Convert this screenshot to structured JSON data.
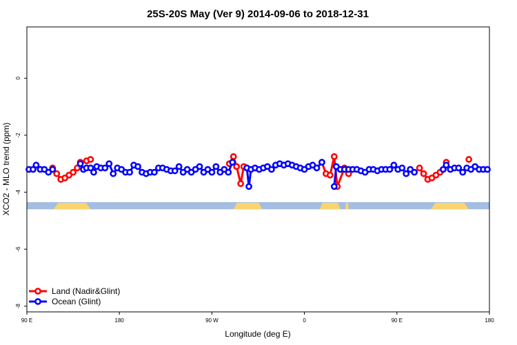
{
  "chart_data": {
    "type": "line",
    "title": "25S-20S May (Ver 9)   2014-09-06 to 2018-12-31",
    "xlabel": "Longitude (deg E)",
    "ylabel": "XCO2 - MLO trend (ppm)",
    "xlim": [
      90,
      540
    ],
    "ylim": [
      -8.2,
      1.8
    ],
    "x_ticks": [
      {
        "value": 90,
        "label": "90 E"
      },
      {
        "value": 180,
        "label": "180"
      },
      {
        "value": 270,
        "label": "90 W"
      },
      {
        "value": 360,
        "label": "0"
      },
      {
        "value": 450,
        "label": "90 E"
      },
      {
        "value": 540,
        "label": "180"
      }
    ],
    "y_ticks": [
      {
        "value": 0,
        "label": "0"
      },
      {
        "value": -2,
        "label": "-2"
      },
      {
        "value": -4,
        "label": "-4"
      },
      {
        "value": -6,
        "label": "-6"
      },
      {
        "value": -8,
        "label": "-8"
      }
    ],
    "grid": false,
    "legend_position": "bottom-left",
    "series": [
      {
        "name": "Land (Nadir&Glint)",
        "color": "#ff0000",
        "segments": [
          [
            [
              115,
              -3.15
            ],
            [
              119,
              -3.35
            ],
            [
              123,
              -3.55
            ],
            [
              127,
              -3.5
            ],
            [
              131,
              -3.4
            ],
            [
              135,
              -3.3
            ],
            [
              139,
              -3.15
            ],
            [
              142,
              -2.95
            ],
            [
              148,
              -2.9
            ],
            [
              152,
              -2.85
            ]
          ],
          [
            [
              287,
              -3.0
            ],
            [
              291,
              -2.75
            ],
            [
              294,
              -3.1
            ],
            [
              298,
              -3.7
            ],
            [
              301,
              -3.1
            ],
            [
              304,
              -3.15
            ]
          ],
          [
            [
              377,
              -2.95
            ],
            [
              381,
              -3.35
            ],
            [
              385,
              -3.4
            ],
            [
              389,
              -2.75
            ],
            [
              392,
              -3.8
            ],
            [
              399,
              -3.15
            ],
            [
              403,
              -3.35
            ]
          ],
          [
            [
              472,
              -3.15
            ],
            [
              476,
              -3.35
            ],
            [
              480,
              -3.55
            ],
            [
              484,
              -3.5
            ],
            [
              488,
              -3.4
            ],
            [
              492,
              -3.3
            ],
            [
              495,
              -3.2
            ],
            [
              498,
              -2.95
            ]
          ],
          [
            [
              520,
              -2.85
            ]
          ]
        ]
      },
      {
        "name": "Ocean (Glint)",
        "color": "#0000ff",
        "segments": [
          [
            [
              92,
              -3.2
            ],
            [
              96,
              -3.2
            ],
            [
              99,
              -3.05
            ],
            [
              103,
              -3.2
            ],
            [
              107,
              -3.2
            ],
            [
              111,
              -3.3
            ],
            [
              115,
              -3.2
            ]
          ],
          [
            [
              142,
              -3.0
            ],
            [
              145,
              -3.2
            ],
            [
              148,
              -3.15
            ],
            [
              152,
              -3.15
            ],
            [
              155,
              -3.3
            ],
            [
              158,
              -3.1
            ],
            [
              162,
              -3.15
            ],
            [
              166,
              -3.15
            ],
            [
              170,
              -3.0
            ],
            [
              174,
              -3.35
            ],
            [
              178,
              -3.15
            ],
            [
              182,
              -3.2
            ],
            [
              186,
              -3.3
            ],
            [
              190,
              -3.3
            ],
            [
              194,
              -3.05
            ],
            [
              198,
              -3.1
            ],
            [
              202,
              -3.3
            ],
            [
              206,
              -3.35
            ],
            [
              210,
              -3.3
            ],
            [
              214,
              -3.3
            ],
            [
              218,
              -3.15
            ],
            [
              222,
              -3.15
            ],
            [
              226,
              -3.2
            ],
            [
              230,
              -3.25
            ],
            [
              234,
              -3.25
            ],
            [
              238,
              -3.1
            ],
            [
              242,
              -3.3
            ],
            [
              246,
              -3.2
            ],
            [
              250,
              -3.3
            ],
            [
              254,
              -3.2
            ],
            [
              258,
              -3.1
            ],
            [
              262,
              -3.3
            ],
            [
              266,
              -3.2
            ],
            [
              270,
              -3.3
            ],
            [
              274,
              -3.1
            ],
            [
              278,
              -3.3
            ],
            [
              282,
              -3.2
            ],
            [
              286,
              -3.3
            ],
            [
              290,
              -2.95
            ]
          ],
          [
            [
              304,
              -3.15
            ],
            [
              306,
              -3.8
            ],
            [
              308,
              -3.2
            ],
            [
              312,
              -3.15
            ],
            [
              316,
              -3.2
            ],
            [
              320,
              -3.15
            ],
            [
              324,
              -3.1
            ],
            [
              328,
              -3.2
            ],
            [
              332,
              -3.05
            ],
            [
              336,
              -3.0
            ],
            [
              340,
              -3.05
            ],
            [
              344,
              -3.0
            ],
            [
              348,
              -3.05
            ],
            [
              352,
              -3.1
            ],
            [
              356,
              -3.15
            ],
            [
              360,
              -3.2
            ],
            [
              364,
              -3.1
            ],
            [
              368,
              -3.05
            ],
            [
              372,
              -3.15
            ],
            [
              377,
              -2.95
            ]
          ],
          [
            [
              389,
              -3.8
            ],
            [
              391,
              -3.1
            ],
            [
              395,
              -3.2
            ],
            [
              399,
              -3.2
            ],
            [
              403,
              -3.2
            ],
            [
              407,
              -3.2
            ],
            [
              411,
              -3.2
            ],
            [
              415,
              -3.25
            ],
            [
              419,
              -3.3
            ],
            [
              423,
              -3.2
            ],
            [
              427,
              -3.2
            ],
            [
              431,
              -3.25
            ],
            [
              435,
              -3.2
            ],
            [
              439,
              -3.2
            ],
            [
              443,
              -3.2
            ],
            [
              447,
              -3.05
            ],
            [
              451,
              -3.2
            ],
            [
              455,
              -3.15
            ],
            [
              459,
              -3.35
            ],
            [
              463,
              -3.2
            ],
            [
              467,
              -3.3
            ]
          ],
          [
            [
              495,
              -3.2
            ],
            [
              498,
              -3.05
            ],
            [
              502,
              -3.2
            ],
            [
              506,
              -3.15
            ],
            [
              510,
              -3.15
            ],
            [
              514,
              -3.3
            ],
            [
              518,
              -3.15
            ],
            [
              522,
              -3.2
            ],
            [
              526,
              -3.1
            ],
            [
              530,
              -3.2
            ],
            [
              534,
              -3.2
            ],
            [
              538,
              -3.2
            ]
          ]
        ]
      }
    ],
    "background_band": {
      "y_range": [
        -4.6,
        -4.35
      ],
      "ocean_color": "#a4bde2",
      "land_color": "#fad56e",
      "land_spans": [
        [
          116,
          152
        ],
        [
          291,
          319
        ],
        [
          375,
          395
        ],
        [
          400,
          403
        ],
        [
          483,
          520
        ]
      ]
    }
  }
}
